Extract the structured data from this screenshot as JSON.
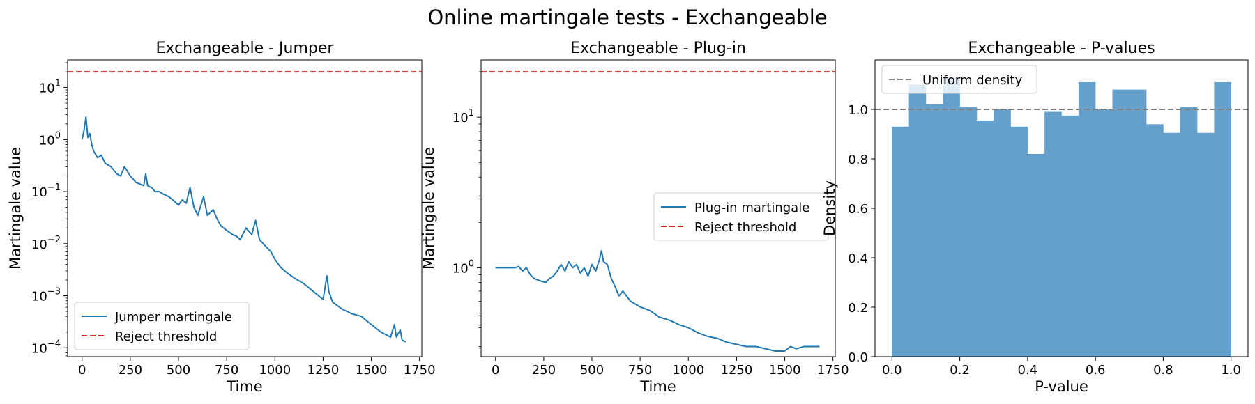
{
  "figure": {
    "suptitle": "Online martingale tests - Exchangeable"
  },
  "chart_data": [
    {
      "type": "line",
      "title": "Exchangeable - Jumper",
      "xlabel": "Time",
      "ylabel": "Martingale value",
      "yscale": "log",
      "xlim": [
        -75,
        1762
      ],
      "ylim_exp": [
        -4.17,
        1.53
      ],
      "xticks": [
        0,
        250,
        500,
        750,
        1000,
        1250,
        1500,
        1750
      ],
      "yticks_exp": [
        -4,
        -3,
        -2,
        -1,
        0,
        1
      ],
      "legend_position": "lower-left",
      "series": [
        {
          "name": "Jumper martingale",
          "color": "#1f77b4",
          "style": "solid",
          "x": [
            0,
            10,
            20,
            30,
            40,
            50,
            60,
            80,
            100,
            120,
            150,
            180,
            200,
            220,
            250,
            280,
            300,
            320,
            330,
            340,
            360,
            380,
            400,
            420,
            450,
            480,
            500,
            520,
            540,
            560,
            580,
            600,
            630,
            650,
            680,
            700,
            720,
            750,
            780,
            800,
            820,
            850,
            880,
            900,
            920,
            950,
            980,
            1000,
            1030,
            1060,
            1100,
            1150,
            1200,
            1250,
            1270,
            1280,
            1300,
            1350,
            1400,
            1450,
            1480,
            1500,
            1550,
            1600,
            1620,
            1630,
            1650,
            1660,
            1680
          ],
          "y": [
            1.0,
            1.5,
            2.7,
            1.1,
            1.3,
            0.8,
            0.6,
            0.45,
            0.5,
            0.35,
            0.3,
            0.22,
            0.2,
            0.3,
            0.2,
            0.15,
            0.14,
            0.13,
            0.22,
            0.13,
            0.12,
            0.1,
            0.1,
            0.09,
            0.08,
            0.065,
            0.055,
            0.07,
            0.06,
            0.12,
            0.05,
            0.035,
            0.08,
            0.035,
            0.045,
            0.03,
            0.022,
            0.018,
            0.015,
            0.014,
            0.012,
            0.02,
            0.015,
            0.028,
            0.012,
            0.009,
            0.007,
            0.005,
            0.0035,
            0.0028,
            0.0022,
            0.0017,
            0.0012,
            0.00085,
            0.0024,
            0.0012,
            0.00075,
            0.00055,
            0.00045,
            0.0004,
            0.00032,
            0.00028,
            0.0002,
            0.00016,
            0.00028,
            0.00016,
            0.00022,
            0.00014,
            0.00013
          ]
        },
        {
          "name": "Reject threshold",
          "color": "#d62728",
          "style": "dashed",
          "y_const": 20
        }
      ]
    },
    {
      "type": "line",
      "title": "Exchangeable - Plug-in",
      "xlabel": "Time",
      "ylabel": "Martingale value",
      "yscale": "log",
      "xlim": [
        -75,
        1762
      ],
      "ylim_exp": [
        -0.59,
        1.38
      ],
      "xticks": [
        0,
        250,
        500,
        750,
        1000,
        1250,
        1500,
        1750
      ],
      "yticks_exp": [
        0,
        1
      ],
      "legend_position": "center-right",
      "series": [
        {
          "name": "Plug-in martingale",
          "color": "#1f77b4",
          "style": "solid",
          "x": [
            0,
            50,
            100,
            120,
            140,
            160,
            180,
            200,
            230,
            260,
            280,
            300,
            320,
            340,
            360,
            380,
            400,
            420,
            440,
            460,
            480,
            500,
            520,
            540,
            550,
            560,
            580,
            600,
            620,
            640,
            660,
            700,
            750,
            800,
            850,
            900,
            950,
            1000,
            1050,
            1100,
            1150,
            1200,
            1250,
            1300,
            1350,
            1400,
            1450,
            1500,
            1530,
            1560,
            1600,
            1650,
            1680
          ],
          "y": [
            1.0,
            1.0,
            1.0,
            1.02,
            0.95,
            1.0,
            0.9,
            0.85,
            0.82,
            0.8,
            0.85,
            0.88,
            0.95,
            1.05,
            0.95,
            1.1,
            1.0,
            1.05,
            0.92,
            1.0,
            0.88,
            1.05,
            0.95,
            1.15,
            1.3,
            1.1,
            1.05,
            0.85,
            0.75,
            0.65,
            0.7,
            0.6,
            0.55,
            0.52,
            0.47,
            0.45,
            0.42,
            0.4,
            0.37,
            0.35,
            0.34,
            0.32,
            0.31,
            0.3,
            0.3,
            0.29,
            0.28,
            0.28,
            0.3,
            0.29,
            0.3,
            0.3,
            0.3
          ]
        },
        {
          "name": "Reject threshold",
          "color": "#d62728",
          "style": "dashed",
          "y_const": 20
        }
      ]
    },
    {
      "type": "bar",
      "title": "Exchangeable - P-values",
      "xlabel": "P-value",
      "ylabel": "Density",
      "xlim": [
        -0.05,
        1.05
      ],
      "ylim": [
        0,
        1.2
      ],
      "xticks": [
        0.0,
        0.2,
        0.4,
        0.6,
        0.8,
        1.0
      ],
      "yticks": [
        0.0,
        0.2,
        0.4,
        0.6,
        0.8,
        1.0
      ],
      "bin_edges": [
        0.0,
        0.05,
        0.1,
        0.15,
        0.2,
        0.25,
        0.3,
        0.35,
        0.4,
        0.45,
        0.5,
        0.55,
        0.6,
        0.65,
        0.7,
        0.75,
        0.8,
        0.85,
        0.9,
        0.95,
        1.0
      ],
      "values": [
        0.93,
        1.1,
        1.02,
        1.13,
        1.01,
        0.955,
        1.0,
        0.93,
        0.82,
        0.99,
        0.975,
        1.11,
        1.0,
        1.08,
        1.08,
        0.94,
        0.905,
        1.01,
        0.905,
        1.11
      ],
      "bar_color": "#65a0cc",
      "legend_position": "top-left",
      "series": [
        {
          "name": "Uniform density",
          "color": "#808080",
          "style": "dashed",
          "y_const": 1.0
        }
      ]
    }
  ]
}
